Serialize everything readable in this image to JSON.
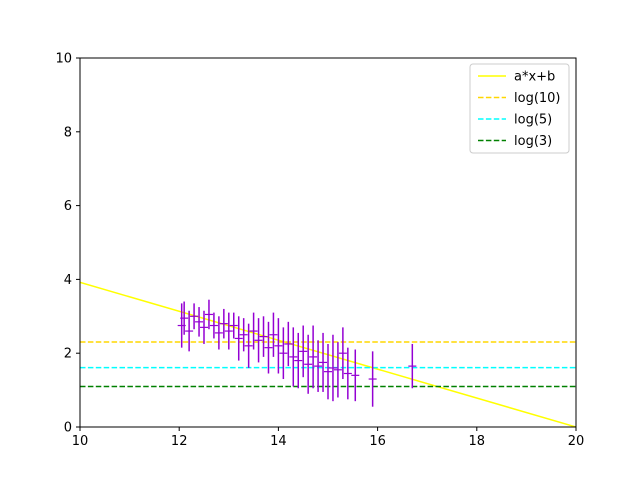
{
  "chart_data": {
    "type": "scatter",
    "title": "",
    "xlabel": "",
    "ylabel": "",
    "xlim": [
      10,
      20
    ],
    "ylim": [
      0,
      10
    ],
    "xticks": [
      10,
      12,
      14,
      16,
      18,
      20
    ],
    "yticks": [
      0,
      2,
      4,
      6,
      8,
      10
    ],
    "grid": false,
    "legend_position": "top-right",
    "lines": [
      {
        "name": "a*x+b",
        "style": "solid",
        "color": "#ffff00",
        "x": [
          10,
          20
        ],
        "y": [
          3.92,
          0.0
        ]
      },
      {
        "name": "log(10)",
        "style": "dashed",
        "color": "#ffd700",
        "y": 2.3026
      },
      {
        "name": "log(5)",
        "style": "dashed",
        "color": "#00ffff",
        "y": 1.6094
      },
      {
        "name": "log(3)",
        "style": "dashed",
        "color": "#008000",
        "y": 1.0986
      }
    ],
    "errorbar_series": {
      "color": "#9400d3",
      "points": [
        {
          "x": 12.05,
          "y": 2.75,
          "err": 0.6
        },
        {
          "x": 12.1,
          "y": 2.95,
          "err": 0.45
        },
        {
          "x": 12.2,
          "y": 2.6,
          "err": 0.55
        },
        {
          "x": 12.3,
          "y": 3.0,
          "err": 0.35
        },
        {
          "x": 12.4,
          "y": 2.85,
          "err": 0.4
        },
        {
          "x": 12.5,
          "y": 2.7,
          "err": 0.45
        },
        {
          "x": 12.6,
          "y": 3.05,
          "err": 0.4
        },
        {
          "x": 12.7,
          "y": 2.75,
          "err": 0.35
        },
        {
          "x": 12.8,
          "y": 2.55,
          "err": 0.45
        },
        {
          "x": 12.9,
          "y": 2.8,
          "err": 0.4
        },
        {
          "x": 13.0,
          "y": 2.6,
          "err": 0.5
        },
        {
          "x": 13.1,
          "y": 2.75,
          "err": 0.35
        },
        {
          "x": 13.2,
          "y": 2.4,
          "err": 0.6
        },
        {
          "x": 13.3,
          "y": 2.5,
          "err": 0.45
        },
        {
          "x": 13.4,
          "y": 2.2,
          "err": 0.6
        },
        {
          "x": 13.5,
          "y": 2.6,
          "err": 0.5
        },
        {
          "x": 13.6,
          "y": 2.35,
          "err": 0.6
        },
        {
          "x": 13.7,
          "y": 2.45,
          "err": 0.55
        },
        {
          "x": 13.8,
          "y": 2.15,
          "err": 0.7
        },
        {
          "x": 13.9,
          "y": 2.5,
          "err": 0.6
        },
        {
          "x": 14.0,
          "y": 2.2,
          "err": 0.75
        },
        {
          "x": 14.1,
          "y": 2.0,
          "err": 0.7
        },
        {
          "x": 14.2,
          "y": 2.25,
          "err": 0.6
        },
        {
          "x": 14.3,
          "y": 1.9,
          "err": 0.8
        },
        {
          "x": 14.4,
          "y": 1.8,
          "err": 0.75
        },
        {
          "x": 14.5,
          "y": 2.05,
          "err": 0.7
        },
        {
          "x": 14.6,
          "y": 1.7,
          "err": 0.8
        },
        {
          "x": 14.7,
          "y": 1.9,
          "err": 0.85
        },
        {
          "x": 14.8,
          "y": 1.65,
          "err": 0.7
        },
        {
          "x": 14.9,
          "y": 1.75,
          "err": 0.8
        },
        {
          "x": 15.0,
          "y": 1.5,
          "err": 0.75
        },
        {
          "x": 15.1,
          "y": 1.6,
          "err": 0.9
        },
        {
          "x": 15.2,
          "y": 1.55,
          "err": 0.75
        },
        {
          "x": 15.3,
          "y": 2.0,
          "err": 0.7
        },
        {
          "x": 15.4,
          "y": 1.45,
          "err": 0.7
        },
        {
          "x": 15.55,
          "y": 1.4,
          "err": 0.7
        },
        {
          "x": 15.9,
          "y": 1.3,
          "err": 0.75
        },
        {
          "x": 16.7,
          "y": 1.65,
          "err": 0.6
        }
      ]
    }
  }
}
